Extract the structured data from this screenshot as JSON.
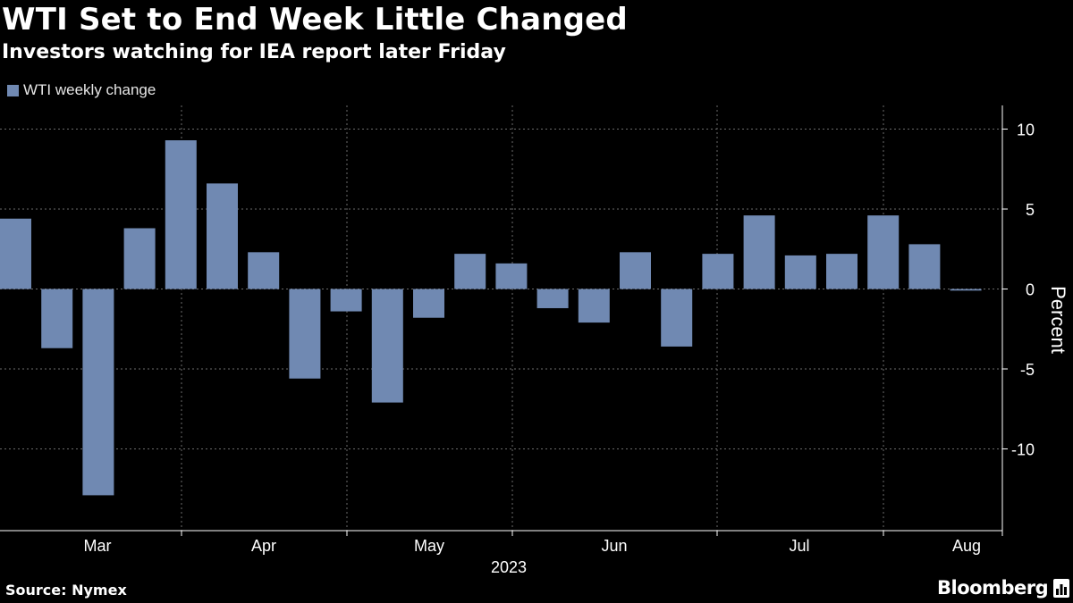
{
  "header": {
    "title": "WTI Set to End Week Little Changed",
    "subtitle": "Investors watching for IEA report later Friday"
  },
  "legend": {
    "label": "WTI weekly change",
    "color": "#7089b2"
  },
  "footer": {
    "source": "Source: Nymex",
    "brand": "Bloomberg"
  },
  "chart_data": {
    "type": "bar",
    "title": "WTI Set to End Week Little Changed",
    "subtitle": "Investors watching for IEA report later Friday",
    "ylabel": "Percent",
    "xlabel": "2023",
    "ylim": [
      -15,
      11
    ],
    "yticks": [
      10,
      5,
      0,
      -5,
      -10
    ],
    "ytick_labels": [
      "10",
      "5",
      "0",
      "-5",
      "-10"
    ],
    "xtick_labels": [
      "Mar",
      "Apr",
      "May",
      "Jun",
      "Jul",
      "Aug"
    ],
    "year_label": "2023",
    "series": [
      {
        "name": "WTI weekly change",
        "color": "#7089b2",
        "values": [
          4.4,
          -3.7,
          -12.9,
          3.8,
          9.3,
          6.6,
          2.3,
          -5.6,
          -1.4,
          -7.1,
          -1.8,
          2.2,
          1.6,
          -1.2,
          -2.1,
          2.3,
          -3.6,
          2.2,
          4.6,
          2.1,
          2.2,
          4.6,
          2.8,
          -0.1
        ]
      }
    ]
  }
}
